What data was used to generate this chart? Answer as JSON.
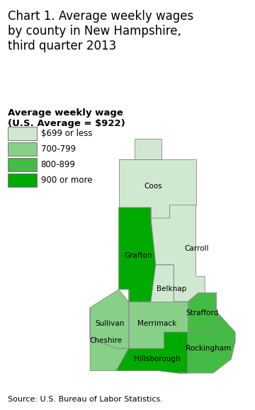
{
  "title": "Chart 1. Average weekly wages\nby county in New Hampshire,\nthird quarter 2013",
  "legend_title": "Average weekly wage\n(U.S. Average = $922)",
  "legend_items": [
    {
      "label": "$699 or less",
      "color": "#d0e8d0"
    },
    {
      "label": "700-799",
      "color": "#88d088"
    },
    {
      "label": "800-899",
      "color": "#44bb44"
    },
    {
      "label": "900 or more",
      "color": "#00aa00"
    }
  ],
  "source": "Source: U.S. Bureau of Labor Statistics.",
  "county_colors": {
    "Coos": "#d0e8d0",
    "Carroll": "#d0e8d0",
    "Belknap": "#d0e8d0",
    "Grafton": "#00aa00",
    "Sullivan": "#88d088",
    "Merrimack": "#88d088",
    "Cheshire": "#88d088",
    "Hillsborough": "#00aa00",
    "Strafford": "#44bb44",
    "Rockingham": "#44bb44"
  },
  "edge_color": "#888888",
  "background": "#ffffff",
  "title_fontsize": 12,
  "label_fontsize": 7.5
}
